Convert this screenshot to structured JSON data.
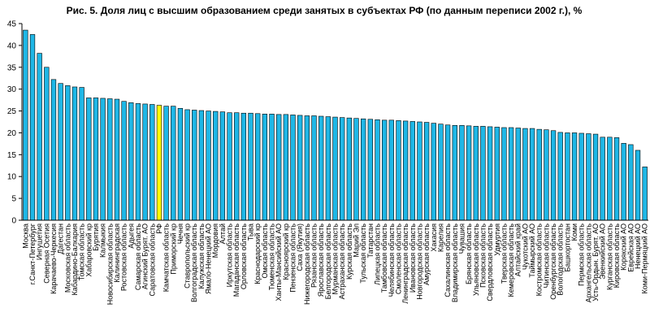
{
  "chart_data": {
    "type": "bar",
    "title": "Рис. 5. Доля лиц с высшим образованием среди занятых в субъектах РФ (по данным переписи 2002 г.), %",
    "xlabel": "",
    "ylabel": "",
    "ylim": [
      0,
      45
    ],
    "yticks": [
      "0",
      "5",
      "10",
      "15",
      "20",
      "25",
      "30",
      "35",
      "40",
      "45"
    ],
    "grid": false,
    "bar_color": "#1fb7e6",
    "highlight_color": "#ffff00",
    "highlight_category": "РФ",
    "categories": [
      "Москва",
      "г.Санкт-Петербург",
      "Ингушетия",
      "Северная Осетия",
      "Карачаево-Черкесия",
      "Дагестан",
      "Московская область",
      "Кабардино-Балкария",
      "Томская область",
      "Хабаровский кр",
      "Бурятия",
      "Калмыкия",
      "Новосибирская область",
      "Калининградская",
      "Ростовская область",
      "Адыгея",
      "Самарская область",
      "Агинский Бурят. АО",
      "Саратовская область",
      "РФ",
      "Камчатская область",
      "Приморский кр",
      "Чечня",
      "Ставропольский кр",
      "Волгоградская область",
      "Калужская область",
      "Ямало-Ненецкий АО",
      "Мордовия",
      "Алтай",
      "Иркутская область",
      "Магаданская область",
      "Орловская область",
      "Тыва",
      "Краснодарский кр",
      "Омская область",
      "Тюменская область",
      "Ханты-Мансийский АО",
      "Красноярский кр",
      "Пензенская область",
      "Саха (Якутия)",
      "Нижегородская область",
      "Рязанская область",
      "Ярославская область",
      "Белгородская область",
      "Мурманская область",
      "Астраханская область",
      "Курская область",
      "Марий Эл",
      "Тульская область",
      "Татарстан",
      "Липецкая область",
      "Тамбовская область",
      "Челябинская область",
      "Смоленская область",
      "Ленинградская область",
      "Ивановская область",
      "Новгородская область",
      "Амурская область",
      "Хакасия",
      "Карелия",
      "Сахалинская область",
      "Владимирская область",
      "Чувашия",
      "Брянская область",
      "Ульяновская область",
      "Псковская область",
      "Свердловская область",
      "Удмуртия",
      "Тверская область",
      "Кемеровская область",
      "Алтайский край",
      "Чукотский АО",
      "Таймырский АО",
      "Костромская область",
      "Читинская область",
      "Оренбургская область",
      "Вологодская область",
      "Башкортостан",
      "Коми",
      "Пермская область",
      "Архангельская область",
      "Усть-Ордын. Бурят. АО",
      "Эвенкийский АО",
      "Курганская область",
      "Кировская область",
      "Корякский АО",
      "Еврейская АО",
      "Ненецкий АО",
      "Коми-Пермяцкий АО"
    ],
    "values": [
      43.5,
      42.5,
      38.2,
      35.0,
      32.2,
      31.3,
      30.8,
      30.5,
      30.4,
      28.0,
      28.0,
      27.9,
      27.8,
      27.7,
      27.2,
      26.9,
      26.7,
      26.6,
      26.5,
      26.3,
      26.1,
      26.1,
      25.6,
      25.3,
      25.2,
      25.1,
      25.0,
      24.9,
      24.8,
      24.6,
      24.6,
      24.5,
      24.5,
      24.4,
      24.3,
      24.3,
      24.2,
      24.2,
      24.1,
      24.0,
      23.9,
      23.9,
      23.8,
      23.7,
      23.6,
      23.5,
      23.4,
      23.3,
      23.2,
      23.1,
      23.0,
      22.9,
      22.9,
      22.8,
      22.7,
      22.6,
      22.5,
      22.4,
      22.2,
      22.0,
      21.8,
      21.7,
      21.7,
      21.6,
      21.5,
      21.5,
      21.4,
      21.3,
      21.2,
      21.2,
      21.1,
      21.0,
      21.0,
      20.8,
      20.7,
      20.5,
      20.1,
      20.0,
      20.0,
      19.9,
      19.8,
      19.7,
      19.0,
      19.0,
      18.9,
      17.6,
      17.3,
      16.0,
      12.2
    ]
  }
}
